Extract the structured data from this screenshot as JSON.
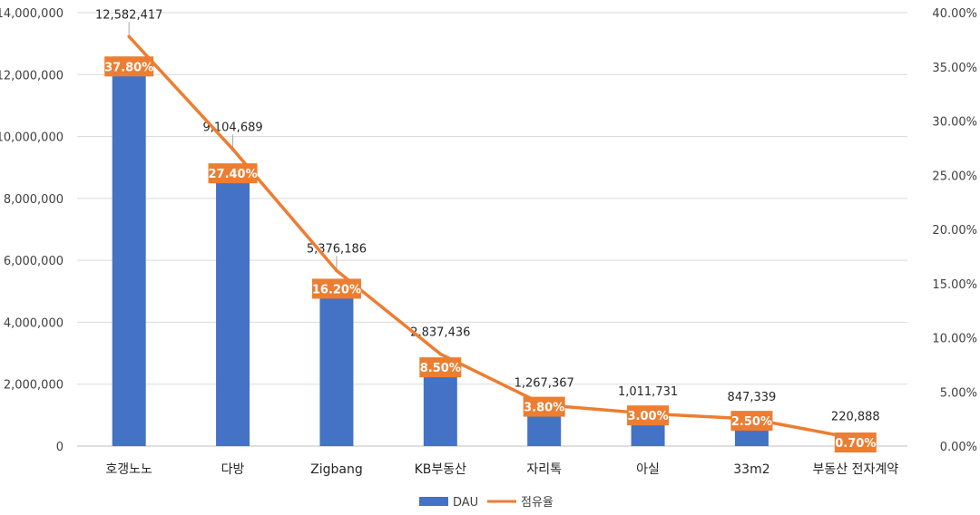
{
  "chart_data": {
    "type": "bar",
    "categories": [
      "호갱노노",
      "다방",
      "Zigbang",
      "KB부동산",
      "자리톡",
      "아실",
      "33m2",
      "부동산 전자계약"
    ],
    "series": [
      {
        "name": "DAU",
        "kind": "bar",
        "axis": "left",
        "color": "#4472C4",
        "values": [
          12582417,
          9104689,
          5376186,
          2837436,
          1267367,
          1011731,
          847339,
          220888
        ],
        "labels": [
          "12,582,417",
          "9,104,689",
          "5,376,186",
          "2,837,436",
          "1,267,367",
          "1,011,731",
          "847,339",
          "220,888"
        ]
      },
      {
        "name": "점유율",
        "kind": "line",
        "axis": "right",
        "color": "#ED7D31",
        "values": [
          37.8,
          27.4,
          16.2,
          8.5,
          3.8,
          3.0,
          2.5,
          0.7
        ],
        "labels": [
          "37.80%",
          "27.40%",
          "16.20%",
          "8.50%",
          "3.80%",
          "3.00%",
          "2.50%",
          "0.70%"
        ]
      }
    ],
    "ylim_left": [
      0,
      14000000
    ],
    "ylim_right": [
      0,
      40
    ],
    "left_ticks": [
      "0",
      "2,000,000",
      "4,000,000",
      "6,000,000",
      "8,000,000",
      "10,000,000",
      "12,000,000",
      "14,000,000"
    ],
    "right_ticks": [
      "0.00%",
      "5.00%",
      "10.00%",
      "15.00%",
      "20.00%",
      "25.00%",
      "30.00%",
      "35.00%",
      "40.00%"
    ],
    "grid": true,
    "legend_position": "bottom",
    "legend": [
      "DAU",
      "점유율"
    ]
  }
}
